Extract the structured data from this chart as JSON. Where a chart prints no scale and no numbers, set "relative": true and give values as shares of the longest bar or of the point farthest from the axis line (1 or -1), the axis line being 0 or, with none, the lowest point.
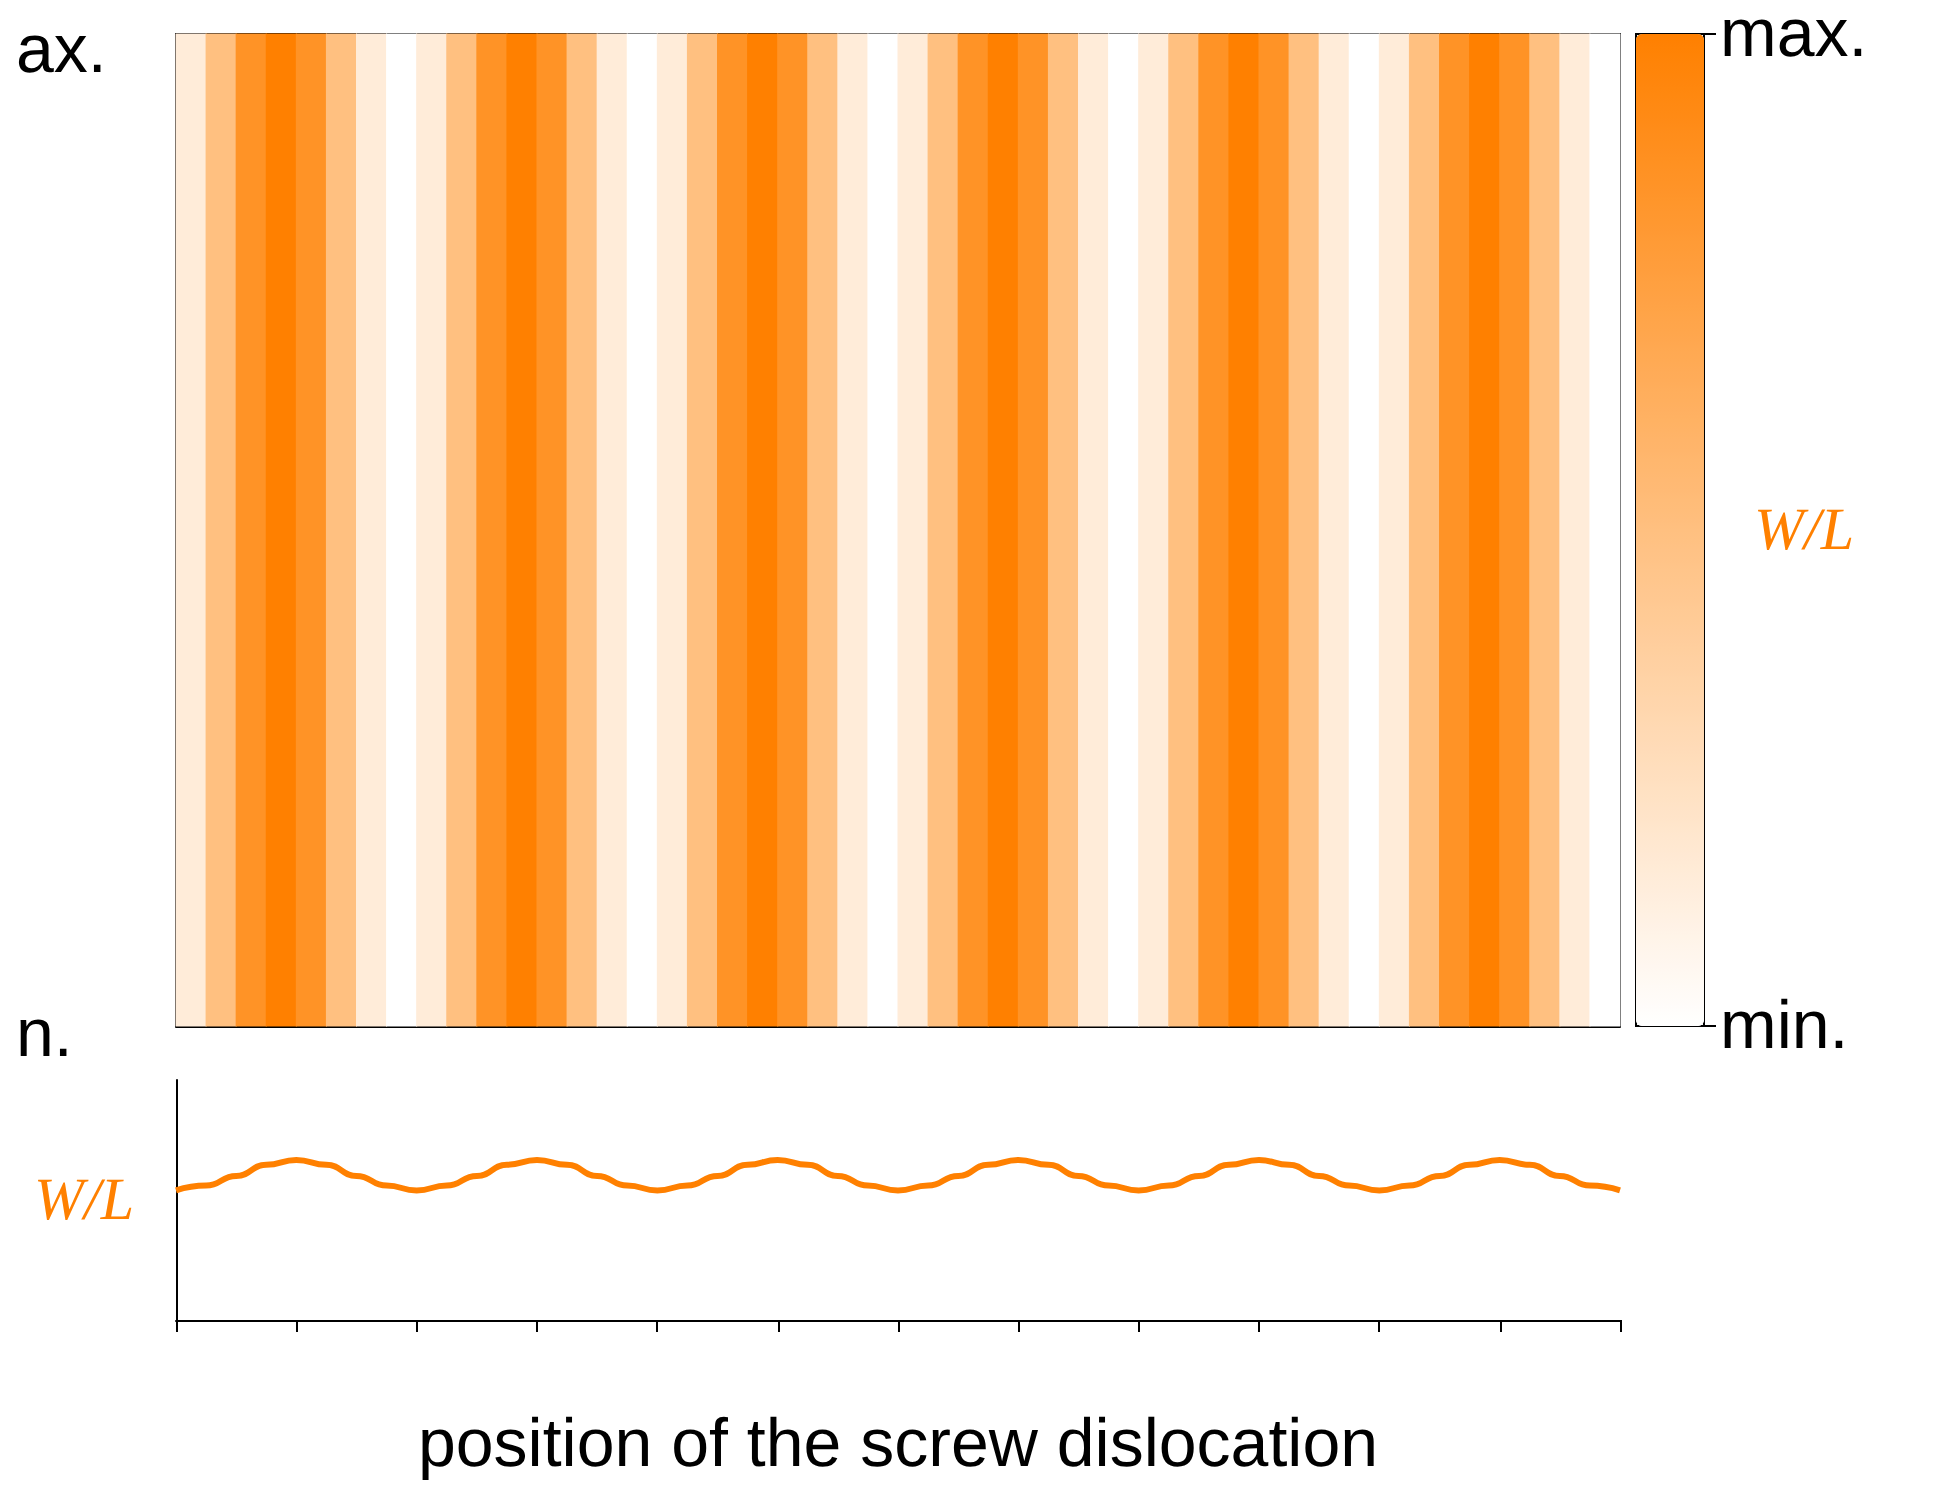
{
  "chart_data": [
    {
      "type": "heatmap",
      "categories": [
        null,
        null,
        null,
        null,
        null,
        null,
        null,
        null,
        null,
        null,
        null,
        null,
        null,
        null,
        null,
        null,
        null,
        null,
        null,
        null,
        null,
        null,
        null,
        null,
        null,
        null,
        null,
        null,
        null,
        null,
        null,
        null,
        null,
        null,
        null,
        null,
        null,
        null,
        null,
        null,
        null,
        null,
        null,
        null,
        null,
        null,
        null,
        null
      ],
      "y_categories": [
        null
      ],
      "cells": [
        [
          0.15,
          0.5,
          0.85,
          1,
          0.85,
          0.5,
          0.15,
          0,
          0.15,
          0.5,
          0.85,
          1,
          0.85,
          0.5,
          0.15,
          0,
          0.15,
          0.5,
          0.85,
          1,
          0.85,
          0.5,
          0.15,
          0,
          0.15,
          0.5,
          0.85,
          1,
          0.85,
          0.5,
          0.15,
          0,
          0.15,
          0.5,
          0.85,
          1,
          0.85,
          0.5,
          0.15,
          0,
          0.15,
          0.5,
          0.85,
          1,
          0.85,
          0.5,
          0.15,
          0
        ]
      ],
      "clim": [
        0,
        1
      ],
      "cticks": [
        {
          "value": 1,
          "label": "max."
        },
        {
          "value": 0,
          "label": "min."
        }
      ],
      "clabel": "W/L",
      "colors": [
        "#ffffff",
        "#ff8000"
      ],
      "annotations": [
        "ax.",
        "n."
      ]
    },
    {
      "type": "line",
      "relative": true,
      "categories": [
        null,
        null,
        null,
        null,
        null,
        null,
        null,
        null,
        null,
        null,
        null,
        null,
        null,
        null,
        null,
        null,
        null,
        null,
        null,
        null,
        null,
        null,
        null,
        null,
        null,
        null,
        null,
        null,
        null,
        null,
        null,
        null,
        null,
        null,
        null,
        null,
        null,
        null,
        null,
        null,
        null,
        null,
        null,
        null,
        null,
        null,
        null,
        null,
        null
      ],
      "series": [
        {
          "color": "#ff8000",
          "values": [
            0.81,
            0.84,
            0.9,
            0.97,
            1,
            0.97,
            0.9,
            0.84,
            0.81,
            0.84,
            0.9,
            0.97,
            1,
            0.97,
            0.9,
            0.84,
            0.81,
            0.84,
            0.9,
            0.97,
            1,
            0.97,
            0.9,
            0.84,
            0.81,
            0.84,
            0.9,
            0.97,
            1,
            0.97,
            0.9,
            0.84,
            0.81,
            0.84,
            0.9,
            0.97,
            1,
            0.97,
            0.9,
            0.84,
            0.81,
            0.84,
            0.9,
            0.97,
            1,
            0.97,
            0.9,
            0.84,
            0.81
          ]
        }
      ],
      "ylabel": "W/L",
      "xlabel": "position of the screw dislocation",
      "marker": "none",
      "grid": false
    }
  ]
}
